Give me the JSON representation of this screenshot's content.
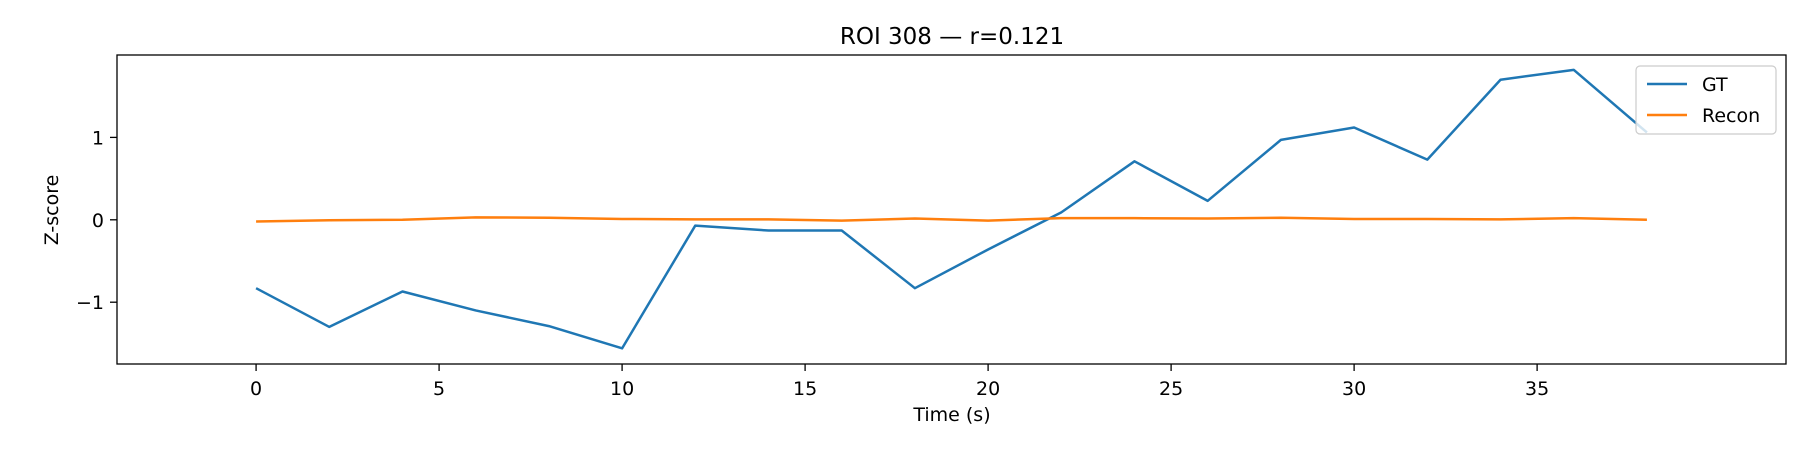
{
  "chart_data": {
    "type": "line",
    "title": "ROI 308 — r=0.121",
    "xlabel": "Time (s)",
    "ylabel": "Z-score",
    "xlim": [
      -3.8,
      41.8
    ],
    "ylim": [
      -1.75,
      2.0
    ],
    "xticks": [
      0,
      5,
      10,
      15,
      20,
      25,
      30,
      35
    ],
    "yticks": [
      -1,
      0,
      1
    ],
    "xtick_labels": [
      "0",
      "5",
      "10",
      "15",
      "20",
      "25",
      "30",
      "35"
    ],
    "ytick_labels": [
      "−1",
      "0",
      "1"
    ],
    "x": [
      0,
      2,
      4,
      6,
      8,
      10,
      12,
      14,
      16,
      18,
      20,
      22,
      24,
      26,
      28,
      30,
      32,
      34,
      36,
      38
    ],
    "series": [
      {
        "name": "GT",
        "color": "#1f77b4",
        "values": [
          -0.83,
          -1.3,
          -0.87,
          -1.1,
          -1.29,
          -1.56,
          -0.07,
          -0.13,
          -0.13,
          -0.83,
          -0.36,
          0.09,
          0.71,
          0.23,
          0.97,
          1.12,
          0.73,
          1.7,
          1.82,
          1.06
        ]
      },
      {
        "name": "Recon",
        "color": "#ff7f0e",
        "values": [
          -0.02,
          -0.005,
          0.0,
          0.03,
          0.025,
          0.01,
          0.005,
          0.005,
          -0.01,
          0.015,
          -0.01,
          0.02,
          0.02,
          0.015,
          0.025,
          0.01,
          0.01,
          0.005,
          0.02,
          0.0
        ]
      }
    ],
    "grid": false,
    "legend_position": "top-right"
  }
}
